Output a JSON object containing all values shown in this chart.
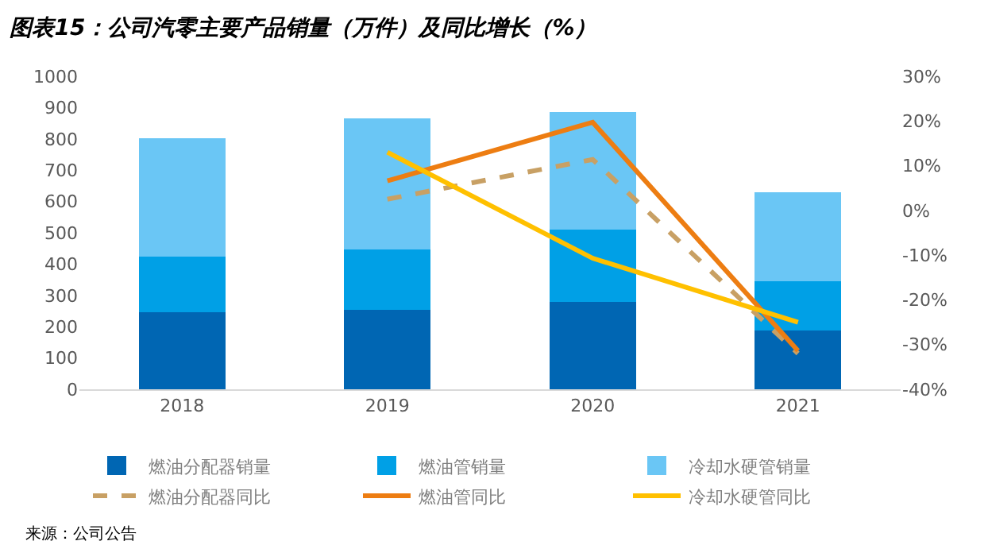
{
  "chart_data": {
    "type": "bar",
    "title": "图表15：公司汽零主要产品销量（万件）及同比增长（%）",
    "categories": [
      "2018",
      "2019",
      "2020",
      "2021"
    ],
    "stacked": true,
    "series": [
      {
        "name": "燃油分配器销量",
        "color": "#0066b3",
        "values": [
          247,
          253,
          280,
          188
        ]
      },
      {
        "name": "燃油管销量",
        "color": "#00a0e6",
        "values": [
          178,
          193,
          231,
          156
        ]
      },
      {
        "name": "冷却水硬管销量",
        "color": "#6ac6f5",
        "values": [
          376,
          420,
          376,
          285
        ]
      },
      {
        "name": "燃油分配器同比",
        "type": "line",
        "axis": "y2",
        "line_style": "dashed",
        "color": "#c8a064",
        "values": [
          null,
          2.5,
          11.4,
          -32
        ]
      },
      {
        "name": "燃油管同比",
        "type": "line",
        "axis": "y2",
        "line_style": "solid",
        "color": "#ed7d12",
        "values": [
          null,
          6.6,
          19.7,
          -31.4
        ]
      },
      {
        "name": "冷却水硬管同比",
        "type": "line",
        "axis": "y2",
        "line_style": "solid",
        "color": "#ffc000",
        "values": [
          null,
          13,
          -10.7,
          -25
        ]
      }
    ],
    "ylim": [
      0,
      1000
    ],
    "yticks": [
      0,
      100,
      200,
      300,
      400,
      500,
      600,
      700,
      800,
      900,
      1000
    ],
    "y2lim": [
      -40,
      30
    ],
    "y2ticks": [
      {
        "value": -40,
        "label": "-40%"
      },
      {
        "value": -30,
        "label": "-30%"
      },
      {
        "value": -20,
        "label": "-20%"
      },
      {
        "value": -10,
        "label": "-10%"
      },
      {
        "value": 0,
        "label": "0%"
      },
      {
        "value": 10,
        "label": "10%"
      },
      {
        "value": 20,
        "label": "20%"
      },
      {
        "value": 30,
        "label": "30%"
      }
    ],
    "legend": "bottom",
    "marker": "none",
    "annotations": [
      "来源：公司公告"
    ]
  }
}
